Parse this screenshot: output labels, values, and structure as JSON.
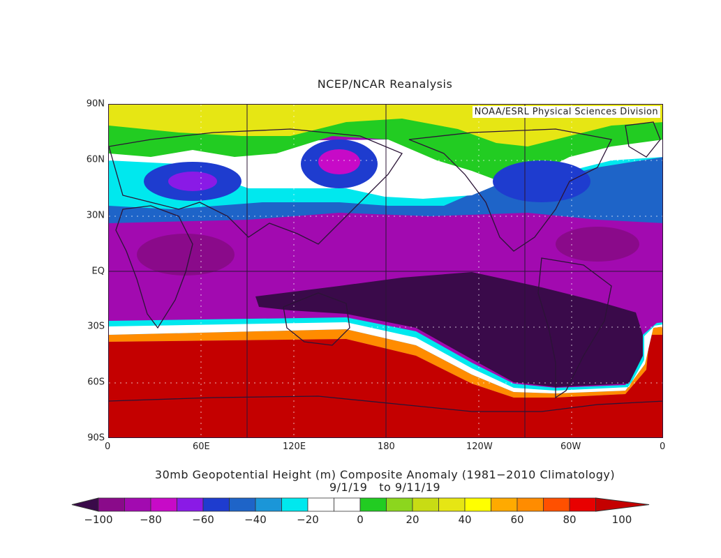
{
  "title": "NCEP/NCAR Reanalysis",
  "credit": "NOAA/ESRL Physical Sciences Division",
  "caption_line1": "30mb Geopotential Height (m) Composite Anomaly (1981−2010 Climatology)",
  "caption_line2": "9/1/19   to 9/11/19",
  "lat_labels": [
    "90N",
    "60N",
    "30N",
    "EQ",
    "30S",
    "60S",
    "90S"
  ],
  "lon_labels": [
    "0",
    "60E",
    "120E",
    "180",
    "120W",
    "60W",
    "0"
  ],
  "colorbar": {
    "labels": [
      "−100",
      "−80",
      "−60",
      "−40",
      "−20",
      "0",
      "20",
      "40",
      "60",
      "80",
      "100"
    ],
    "colors": [
      "#3a0a4a",
      "#8a0a8a",
      "#a20ab0",
      "#c70ac7",
      "#8a1ae6",
      "#1e3ccf",
      "#1e64c8",
      "#1b96d8",
      "#00e8ee",
      "#ffffff",
      "#ffffff",
      "#22cc22",
      "#8cd61e",
      "#c8dc14",
      "#e6e614",
      "#ffff00",
      "#ffaa00",
      "#ff8c00",
      "#ff5000",
      "#e80000",
      "#c40000"
    ]
  }
}
